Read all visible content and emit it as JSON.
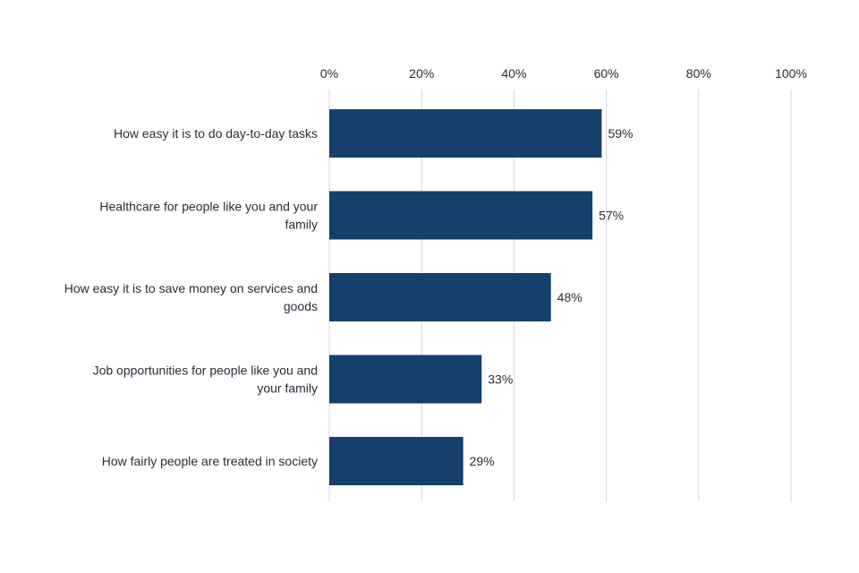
{
  "chart_data": {
    "type": "bar",
    "orientation": "horizontal",
    "categories": [
      [
        "How easy it is to do day-to-day tasks"
      ],
      [
        "Healthcare for people like you and your",
        "family"
      ],
      [
        "How easy it is to save money on services and",
        "goods"
      ],
      [
        "Job opportunities for people like you and",
        "your family"
      ],
      [
        "How fairly people are treated in society"
      ]
    ],
    "values": [
      59,
      57,
      48,
      33,
      29
    ],
    "value_labels": [
      "59%",
      "57%",
      "48%",
      "33%",
      "29%"
    ],
    "x_ticks": [
      0,
      20,
      40,
      60,
      80,
      100
    ],
    "x_tick_labels": [
      "0%",
      "20%",
      "40%",
      "60%",
      "80%",
      "100%"
    ],
    "xlim": [
      0,
      100
    ],
    "x_axis_position": "top",
    "grid": true,
    "title": "",
    "xlabel": "",
    "ylabel": "",
    "bar_color": "#14406b"
  }
}
